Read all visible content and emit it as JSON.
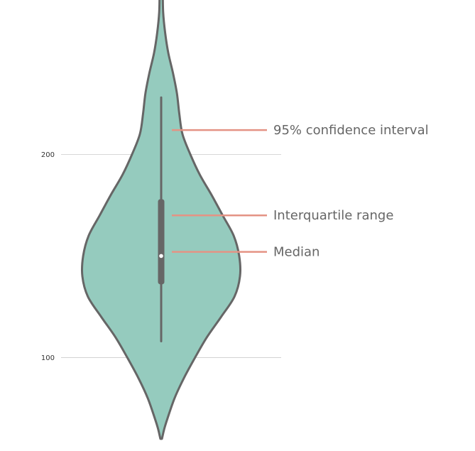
{
  "chart_data": {
    "type": "violin",
    "title": "",
    "xlabel": "",
    "ylabel": "",
    "ylim": [
      54,
      276
    ],
    "yticks": [
      100,
      200
    ],
    "grid": "horizontal",
    "violin_fill": "#95CBBE",
    "violin_edge": "#666666",
    "annotation_color": "#E49384",
    "distribution": {
      "min": 60,
      "max": 280,
      "mode": 150,
      "density": [
        [
          60,
          0.01
        ],
        [
          65,
          0.04
        ],
        [
          70,
          0.08
        ],
        [
          80,
          0.17
        ],
        [
          90,
          0.29
        ],
        [
          100,
          0.43
        ],
        [
          110,
          0.58
        ],
        [
          120,
          0.76
        ],
        [
          130,
          0.93
        ],
        [
          140,
          1.0
        ],
        [
          150,
          0.99
        ],
        [
          160,
          0.92
        ],
        [
          170,
          0.78
        ],
        [
          180,
          0.64
        ],
        [
          190,
          0.49
        ],
        [
          200,
          0.37
        ],
        [
          210,
          0.27
        ],
        [
          220,
          0.23
        ],
        [
          230,
          0.2
        ],
        [
          240,
          0.15
        ],
        [
          250,
          0.09
        ],
        [
          260,
          0.05
        ],
        [
          270,
          0.025
        ],
        [
          280,
          0.02
        ]
      ]
    },
    "stats": {
      "median": 150,
      "q1": 136,
      "q3": 178,
      "whisker_low": 108,
      "whisker_high": 228
    },
    "annotations": [
      {
        "id": "ci",
        "label": "95% confidence interval",
        "y": 212
      },
      {
        "id": "iqr",
        "label": "Interquartile range",
        "y": 170
      },
      {
        "id": "median",
        "label": "Median",
        "y": 152
      }
    ]
  }
}
